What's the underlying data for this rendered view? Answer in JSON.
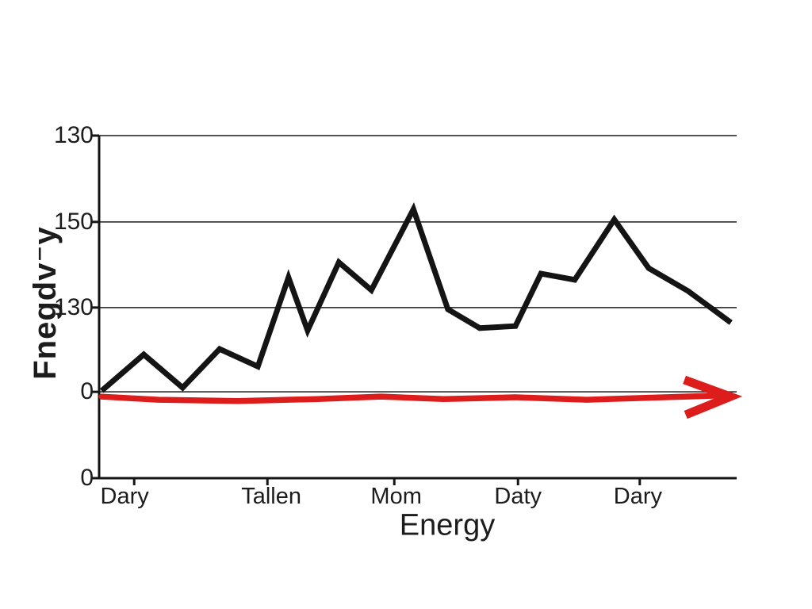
{
  "chart_data": {
    "type": "line",
    "title": "",
    "xlabel": "Energy",
    "ylabel": "Fnegdv⁻y",
    "legend": "none",
    "grid": "horizontal-only",
    "colors": {
      "series": "#141414",
      "arrow": "#dd1c1c",
      "gridline": "#3a3a3a",
      "axis": "#141414",
      "text": "#1c1c1c",
      "background": "#ffffff"
    },
    "y_gridlines": [
      {
        "label": "130",
        "pos": 100
      },
      {
        "label": "150",
        "pos": 74.8
      },
      {
        "label": "130",
        "pos": 49.8
      },
      {
        "label": "0",
        "pos": 25.2
      },
      {
        "label": "0",
        "pos": 0
      }
    ],
    "x_ticks": [
      {
        "label": "Dary",
        "tick_pos": 5.5,
        "label_pos": 4.0
      },
      {
        "label": "Tallen",
        "tick_pos": 26.4,
        "label_pos": 27.0
      },
      {
        "label": "Mom",
        "tick_pos": 46.3,
        "label_pos": 46.6
      },
      {
        "label": "Daty",
        "tick_pos": 65.7,
        "label_pos": 65.7
      },
      {
        "label": "Dary",
        "tick_pos": 84.8,
        "label_pos": 84.5
      }
    ],
    "series": [
      {
        "name": "jagged-black-line",
        "points": [
          [
            0.4,
            25.5
          ],
          [
            7.0,
            36.1
          ],
          [
            13.1,
            26.4
          ],
          [
            18.9,
            37.7
          ],
          [
            24.9,
            32.6
          ],
          [
            29.7,
            58.6
          ],
          [
            32.7,
            43.1
          ],
          [
            37.6,
            63.0
          ],
          [
            42.7,
            54.9
          ],
          [
            49.3,
            78.5
          ],
          [
            54.7,
            49.3
          ],
          [
            59.7,
            43.8
          ],
          [
            65.3,
            44.4
          ],
          [
            69.3,
            59.7
          ],
          [
            74.6,
            57.9
          ],
          [
            80.8,
            75.5
          ],
          [
            86.2,
            61.3
          ],
          [
            92.4,
            54.6
          ],
          [
            99.1,
            45.4
          ]
        ]
      }
    ],
    "annotations": [
      {
        "name": "red-baseline-arrow",
        "type": "arrow",
        "shaft_points": [
          [
            0.4,
            23.8
          ],
          [
            9.3,
            22.9
          ],
          [
            21.8,
            22.5
          ],
          [
            34.2,
            23.1
          ],
          [
            44.2,
            23.8
          ],
          [
            54.1,
            23.1
          ],
          [
            65.3,
            23.6
          ],
          [
            76.5,
            22.9
          ],
          [
            85.2,
            23.4
          ],
          [
            97.0,
            24.1
          ]
        ],
        "head": {
          "tip": [
            99.0,
            23.8
          ],
          "back_top": [
            91.8,
            28.7
          ],
          "back_bottom": [
            92.0,
            18.5
          ]
        }
      }
    ]
  }
}
